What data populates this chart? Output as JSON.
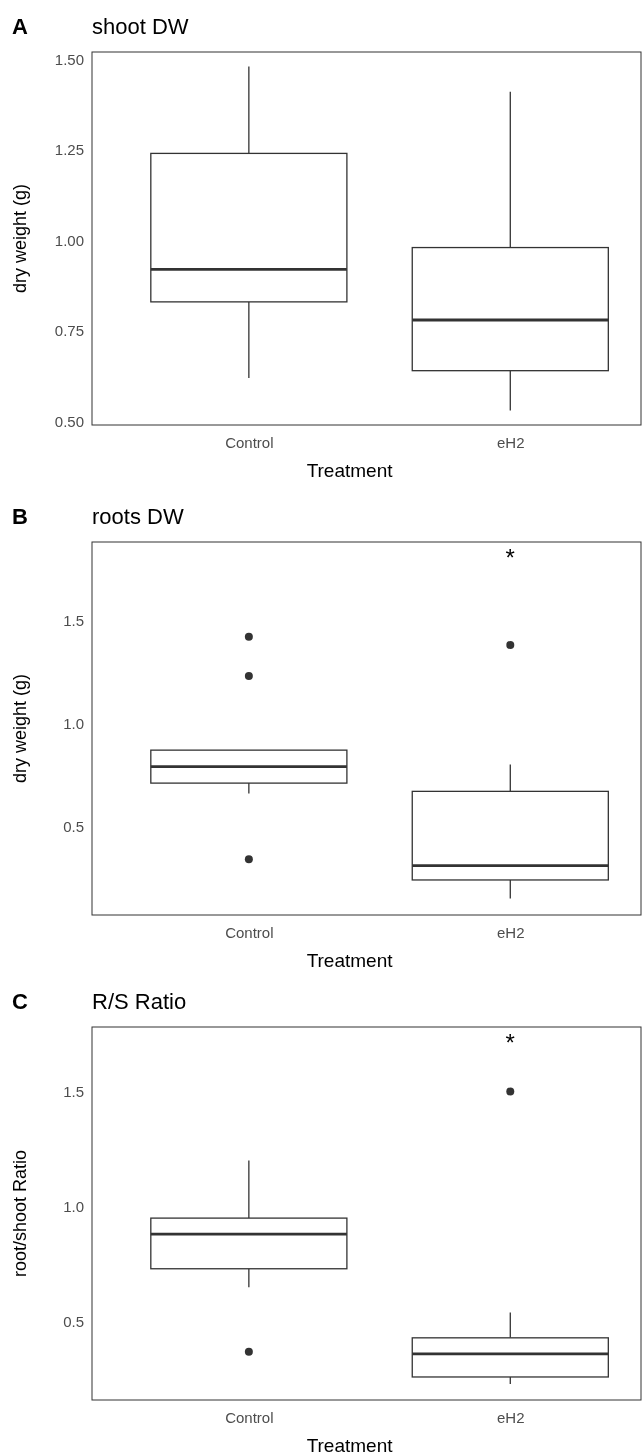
{
  "chart_data": [
    {
      "type": "box",
      "title": "shoot DW",
      "xlabel": "Treatment",
      "ylabel": "dry weight (g)",
      "categories": [
        "Control",
        "eH2"
      ],
      "ylim": [
        0.49,
        1.52
      ],
      "yticks": [
        {
          "value": 0.5,
          "label": "0.50"
        },
        {
          "value": 0.75,
          "label": "0.75"
        },
        {
          "value": 1,
          "label": "1.00"
        },
        {
          "value": 1.25,
          "label": "1.25"
        },
        {
          "value": 1.5,
          "label": "1.50"
        }
      ],
      "grid": false,
      "annotations": [
        "A"
      ],
      "series": [
        {
          "color": "#333333",
          "boxes": [
            {
              "low": 0.62,
              "q1": 0.83,
              "median": 0.92,
              "q3": 1.24,
              "high": 1.48
            },
            {
              "low": 0.53,
              "q1": 0.64,
              "median": 0.78,
              "q3": 0.98,
              "high": 1.41
            }
          ]
        }
      ]
    },
    {
      "type": "box",
      "title": "roots DW",
      "xlabel": "Treatment",
      "ylabel": "dry weight (g)",
      "categories": [
        "Control",
        "eH2"
      ],
      "ylim": [
        0.07,
        1.88
      ],
      "yticks": [
        {
          "value": 0.5,
          "label": "0.5"
        },
        {
          "value": 1,
          "label": "1.0"
        },
        {
          "value": 1.5,
          "label": "1.5"
        }
      ],
      "grid": false,
      "annotations": [
        "B",
        "*"
      ],
      "series": [
        {
          "color": "#333333",
          "boxes": [
            {
              "low": 0.66,
              "q1": 0.71,
              "median": 0.79,
              "q3": 0.87,
              "high": 0.87,
              "outliers": [
                1.42,
                1.23,
                0.34
              ]
            },
            {
              "low": 0.15,
              "q1": 0.24,
              "median": 0.31,
              "q3": 0.67,
              "high": 0.8,
              "outliers": [
                1.38
              ]
            }
          ]
        }
      ]
    },
    {
      "type": "box",
      "title": "R/S Ratio",
      "xlabel": "Treatment",
      "ylabel": "root/shoot Ratio",
      "categories": [
        "Control",
        "eH2"
      ],
      "ylim": [
        0.16,
        1.78
      ],
      "yticks": [
        {
          "value": 0.5,
          "label": "0.5"
        },
        {
          "value": 1,
          "label": "1.0"
        },
        {
          "value": 1.5,
          "label": "1.5"
        }
      ],
      "grid": false,
      "annotations": [
        "C",
        "*"
      ],
      "series": [
        {
          "color": "#333333",
          "boxes": [
            {
              "low": 0.65,
              "q1": 0.73,
              "median": 0.88,
              "q3": 0.95,
              "high": 1.2,
              "outliers": [
                0.37
              ]
            },
            {
              "low": 0.23,
              "q1": 0.26,
              "median": 0.36,
              "q3": 0.43,
              "high": 0.54,
              "outliers": [
                1.5
              ]
            }
          ]
        }
      ]
    }
  ]
}
